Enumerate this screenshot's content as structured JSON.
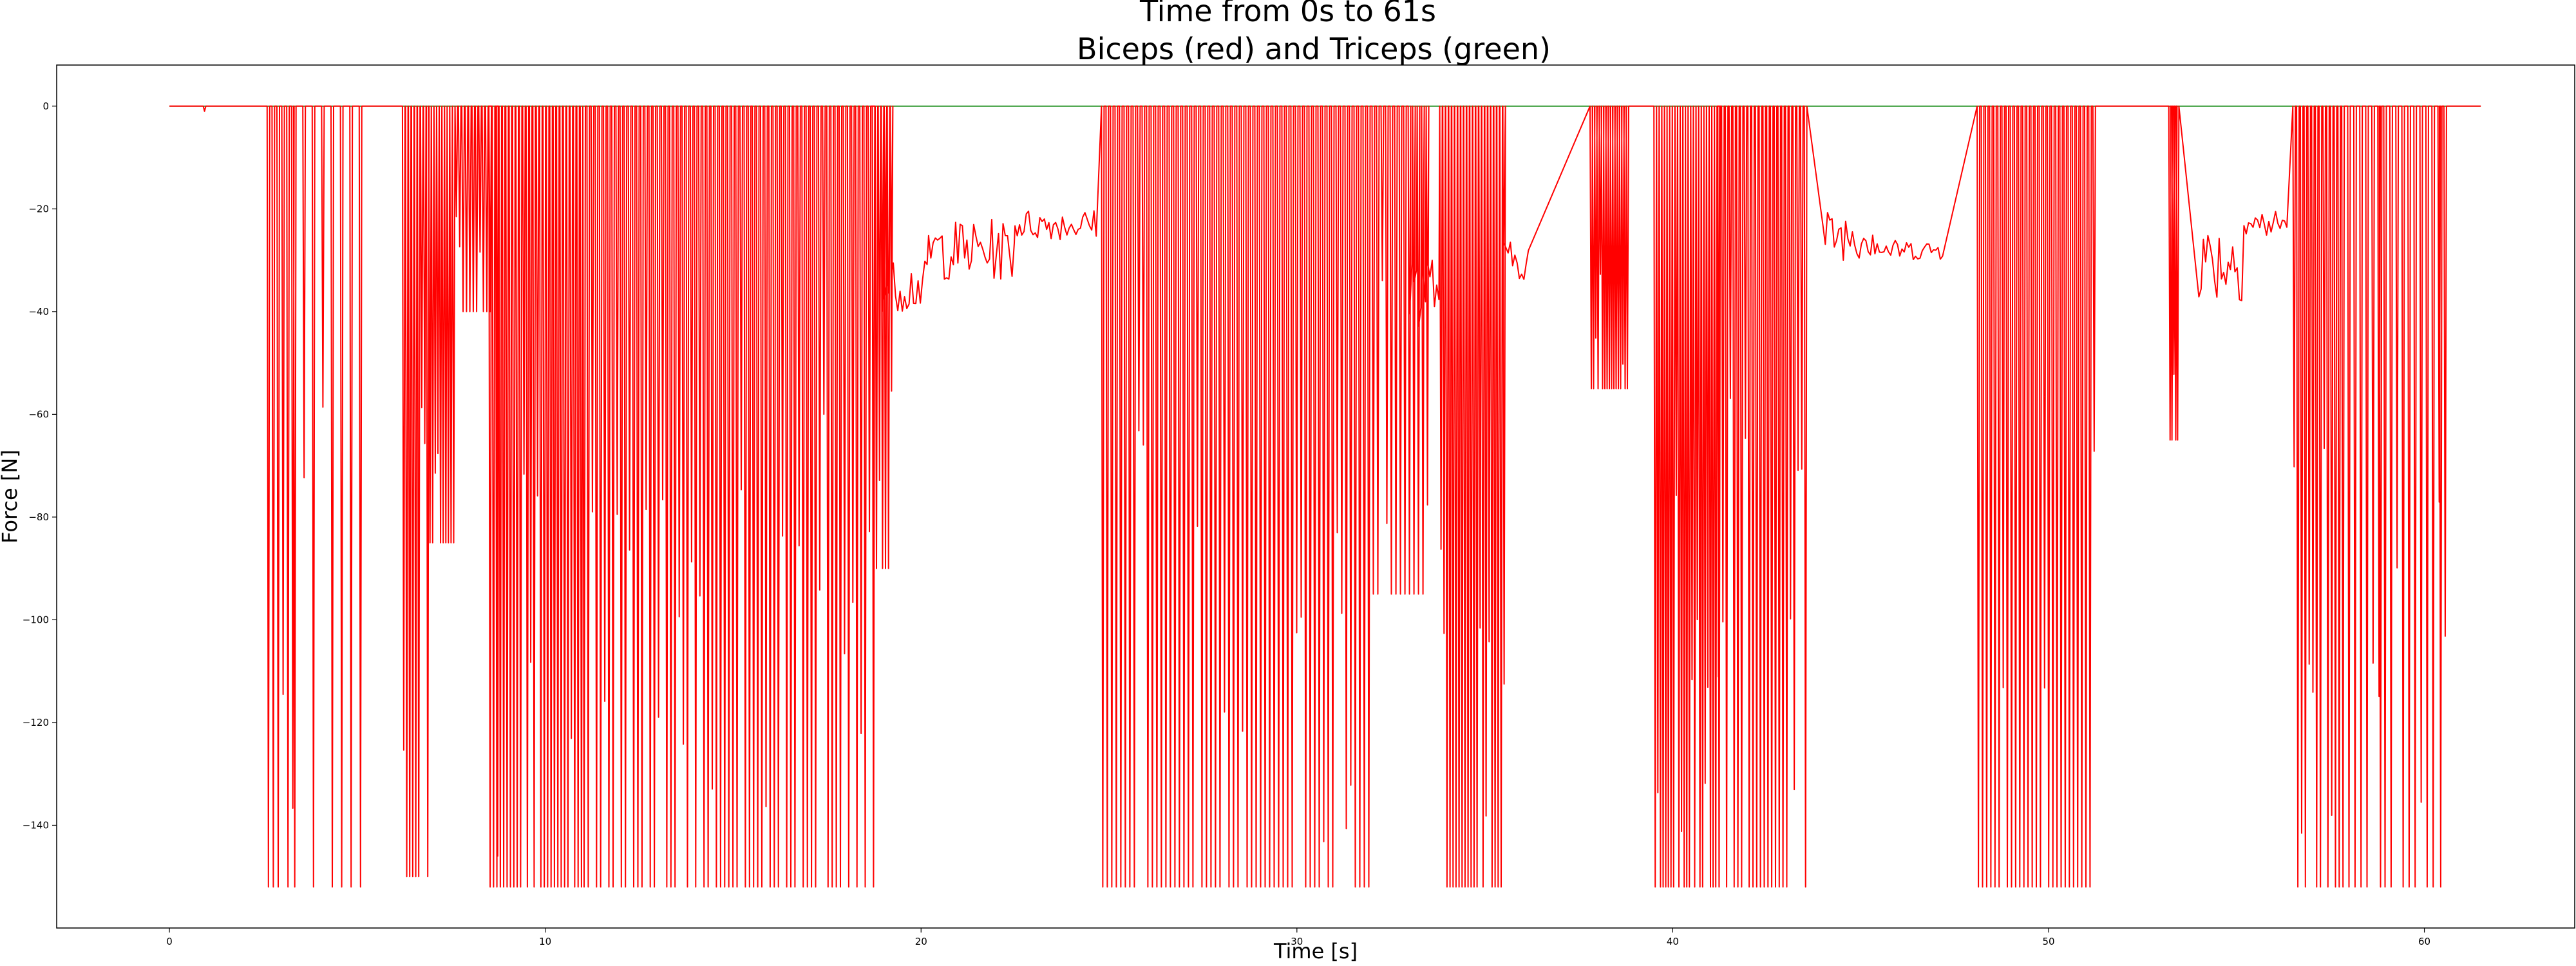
{
  "chart_data": {
    "type": "line",
    "title": "Time from 0s to 61s",
    "subtitle": "Biceps (red) and Triceps (green)",
    "xlabel": "Time [s]",
    "ylabel": "Force [N]",
    "xlim": [
      -3.0,
      64.0
    ],
    "ylim": [
      -160.0,
      8.0
    ],
    "x_ticks": [
      0,
      10,
      20,
      30,
      40,
      50,
      60
    ],
    "y_ticks": [
      0,
      -20,
      -40,
      -60,
      -80,
      -100,
      -120,
      -140
    ],
    "grid": false,
    "legend": "none",
    "time_range": [
      0,
      61.5
    ],
    "series": [
      {
        "key": "triceps",
        "color": "#008000",
        "baseline": 0,
        "points": [
          [
            0,
            0
          ],
          [
            61.5,
            0
          ]
        ]
      },
      {
        "key": "biceps",
        "color": "#ff0000",
        "baseline": 0,
        "min_force": -152,
        "spike_segments": [
          {
            "from": 2.6,
            "to": 3.3,
            "min": -152,
            "step": 0.13
          },
          {
            "from": 3.3,
            "to": 5.3,
            "min": -152,
            "step": 0.25
          },
          {
            "from": 6.2,
            "to": 6.9,
            "min": -150,
            "step": 0.08
          },
          {
            "from": 6.9,
            "to": 7.6,
            "min": -85,
            "step": 0.07
          },
          {
            "from": 7.6,
            "to": 8.5,
            "min": -40,
            "step": 0.09
          },
          {
            "from": 8.5,
            "to": 11.0,
            "min": -152,
            "step": 0.09
          },
          {
            "from": 11.0,
            "to": 18.7,
            "min": -152,
            "step": 0.11
          },
          {
            "from": 18.7,
            "to": 19.2,
            "min": -90,
            "step": 0.08
          },
          {
            "from": 24.8,
            "to": 32.0,
            "min": -152,
            "step": 0.12
          },
          {
            "from": 32.0,
            "to": 33.5,
            "min": -95,
            "step": 0.12
          },
          {
            "from": 33.8,
            "to": 35.5,
            "min": -152,
            "step": 0.08
          },
          {
            "from": 37.8,
            "to": 38.8,
            "min": -55,
            "step": 0.06
          },
          {
            "from": 39.5,
            "to": 41.2,
            "min": -152,
            "step": 0.07
          },
          {
            "from": 41.2,
            "to": 43.6,
            "min": -152,
            "step": 0.1
          },
          {
            "from": 48.1,
            "to": 51.2,
            "min": -152,
            "step": 0.11
          },
          {
            "from": 53.2,
            "to": 53.4,
            "min": -65,
            "step": 0.05
          },
          {
            "from": 56.5,
            "to": 57.8,
            "min": -152,
            "step": 0.1
          },
          {
            "from": 57.8,
            "to": 60.6,
            "min": -152,
            "step": 0.16
          }
        ],
        "plateaus": [
          {
            "from": 18.9,
            "to": 20.2,
            "level": -35,
            "jitter": 5
          },
          {
            "from": 20.2,
            "to": 22.5,
            "level": -28,
            "jitter": 6
          },
          {
            "from": 22.5,
            "to": 24.7,
            "level": -23,
            "jitter": 3
          },
          {
            "from": 33.0,
            "to": 33.8,
            "level": -35,
            "jitter": 8
          },
          {
            "from": 35.5,
            "to": 36.2,
            "level": -30,
            "jitter": 4
          },
          {
            "from": 44.0,
            "to": 45.5,
            "level": -25,
            "jitter": 5
          },
          {
            "from": 45.5,
            "to": 47.2,
            "level": -28,
            "jitter": 2
          },
          {
            "from": 54.0,
            "to": 55.2,
            "level": -30,
            "jitter": 8
          },
          {
            "from": 55.2,
            "to": 56.4,
            "level": -23,
            "jitter": 3
          }
        ],
        "isolated_dips": [
          {
            "x": 0.9,
            "y": -1
          },
          {
            "x": 8.7,
            "y": -146
          },
          {
            "x": 58.8,
            "y": -152
          },
          {
            "x": 60.4,
            "y": -152
          }
        ]
      }
    ]
  }
}
